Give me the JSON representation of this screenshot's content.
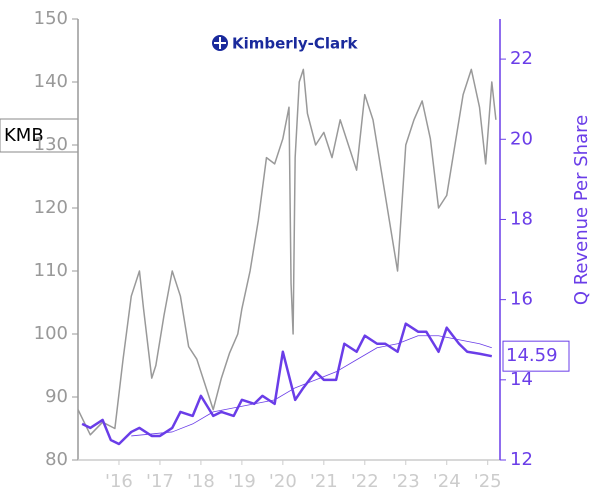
{
  "chart_data": {
    "type": "line",
    "ticker": "KMB",
    "logo_text": "Kimberly-Clark",
    "y2_label": "Q Revenue Per Share",
    "xlim": [
      2015.0,
      2025.3
    ],
    "xticks": [
      {
        "value": 2016,
        "label": "'16"
      },
      {
        "value": 2017,
        "label": "'17"
      },
      {
        "value": 2018,
        "label": "'18"
      },
      {
        "value": 2019,
        "label": "'19"
      },
      {
        "value": 2020,
        "label": "'20"
      },
      {
        "value": 2021,
        "label": "'21"
      },
      {
        "value": 2022,
        "label": "'22"
      },
      {
        "value": 2023,
        "label": "'23"
      },
      {
        "value": 2024,
        "label": "'24"
      },
      {
        "value": 2025,
        "label": "'25"
      }
    ],
    "ylim": [
      80,
      150
    ],
    "yticks": [
      80,
      90,
      100,
      110,
      120,
      130,
      140,
      150
    ],
    "y2lim": [
      12,
      23
    ],
    "y2ticks": [
      12,
      14,
      16,
      18,
      20,
      22
    ],
    "last_value": {
      "value": 14.59,
      "label": "14.59"
    },
    "series": [
      {
        "color": "#999999",
        "width": 1.5,
        "x": [
          2015.0,
          2015.3,
          2015.6,
          2015.9,
          2016.1,
          2016.3,
          2016.5,
          2016.6,
          2016.8,
          2016.9,
          2017.1,
          2017.3,
          2017.5,
          2017.7,
          2017.9,
          2018.1,
          2018.3,
          2018.5,
          2018.7,
          2018.9,
          2019.0,
          2019.2,
          2019.4,
          2019.6,
          2019.8,
          2020.0,
          2020.15,
          2020.2,
          2020.25,
          2020.3,
          2020.4,
          2020.5,
          2020.6,
          2020.8,
          2021.0,
          2021.2,
          2021.4,
          2021.6,
          2021.8,
          2022.0,
          2022.2,
          2022.4,
          2022.6,
          2022.8,
          2023.0,
          2023.2,
          2023.4,
          2023.6,
          2023.8,
          2024.0,
          2024.2,
          2024.4,
          2024.6,
          2024.8,
          2024.95,
          2025.1,
          2025.2
        ],
        "values": [
          88,
          84,
          86,
          85,
          96,
          106,
          110,
          104,
          93,
          95,
          103,
          110,
          106,
          98,
          96,
          92,
          88,
          93,
          97,
          100,
          104,
          110,
          118,
          128,
          127,
          131,
          136,
          108,
          100,
          128,
          140,
          142,
          135,
          130,
          132,
          128,
          134,
          130,
          126,
          138,
          134,
          126,
          118,
          110,
          130,
          134,
          137,
          131,
          120,
          122,
          130,
          138,
          142,
          136,
          127,
          140,
          134
        ]
      },
      {
        "color": "#6a3de8",
        "width": 2.5,
        "axis": "y2",
        "x": [
          2015.1,
          2015.3,
          2015.6,
          2015.8,
          2016.0,
          2016.3,
          2016.5,
          2016.8,
          2017.0,
          2017.3,
          2017.5,
          2017.8,
          2018.0,
          2018.3,
          2018.5,
          2018.8,
          2019.0,
          2019.3,
          2019.5,
          2019.8,
          2020.0,
          2020.3,
          2020.5,
          2020.8,
          2021.0,
          2021.3,
          2021.5,
          2021.8,
          2022.0,
          2022.3,
          2022.5,
          2022.8,
          2023.0,
          2023.3,
          2023.5,
          2023.8,
          2024.0,
          2024.3,
          2024.5,
          2024.8,
          2025.1
        ],
        "values": [
          12.9,
          12.8,
          13.0,
          12.5,
          12.4,
          12.7,
          12.8,
          12.6,
          12.6,
          12.8,
          13.2,
          13.1,
          13.6,
          13.1,
          13.2,
          13.1,
          13.5,
          13.4,
          13.6,
          13.4,
          14.7,
          13.5,
          13.8,
          14.2,
          14.0,
          14.0,
          14.9,
          14.7,
          15.1,
          14.9,
          14.9,
          14.7,
          15.4,
          15.2,
          15.2,
          14.7,
          15.3,
          14.9,
          14.7,
          14.65,
          14.59
        ]
      },
      {
        "color": "#6a3de8",
        "width": 0.8,
        "axis": "y2",
        "x": [
          2016.3,
          2016.8,
          2017.3,
          2017.8,
          2018.3,
          2018.8,
          2019.3,
          2019.8,
          2020.3,
          2020.8,
          2021.3,
          2021.8,
          2022.3,
          2022.8,
          2023.3,
          2023.8,
          2024.3,
          2024.8,
          2025.1
        ],
        "values": [
          12.6,
          12.65,
          12.7,
          12.9,
          13.2,
          13.3,
          13.4,
          13.5,
          13.8,
          14.0,
          14.2,
          14.5,
          14.8,
          14.9,
          15.1,
          15.1,
          15.0,
          14.9,
          14.8
        ]
      }
    ]
  }
}
